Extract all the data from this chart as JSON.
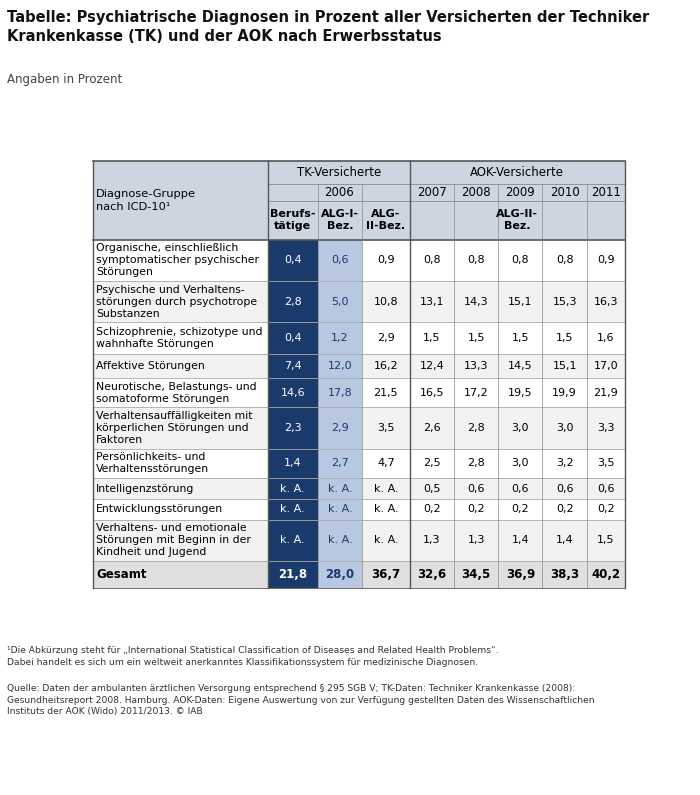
{
  "title": "Tabelle: Psychiatrische Diagnosen in Prozent aller Versicherten der Techniker\nKrankenkasse (TK) und der AOK nach Erwerbsstatus",
  "subtitle": "Angaben in Prozent",
  "footnote1": "¹Die Abkürzung steht für „International Statistical Classification of Diseases and Related Health Problems“.\nDabei handelt es sich um ein weltweit anerkanntes Klassifikationssystem für medizinische Diagnosen.",
  "footnote2": "Quelle: Daten der ambulanten ärztlichen Versorgung entsprechend § 295 SGB V; TK-Daten: Techniker Krankenkasse (2008):\nGesundheitsreport 2008. Hamburg. AOK-Daten: Eigene Auswertung von zur Verfügung gestellten Daten des Wissenschaftlichen\nInstituts der AOK (Wido) 2011/2013. © IAB",
  "rows": [
    {
      "label": "Organische, einschließlich\nsymptomatischer psychischer\nStörungen",
      "values": [
        "0,4",
        "0,6",
        "0,9",
        "0,8",
        "0,8",
        "0,8",
        "0,8",
        "0,9"
      ],
      "is_total": false
    },
    {
      "label": "Psychische und Verhaltens-\nstörungen durch psychotrope\nSubstanzen",
      "values": [
        "2,8",
        "5,0",
        "10,8",
        "13,1",
        "14,3",
        "15,1",
        "15,3",
        "16,3"
      ],
      "is_total": false
    },
    {
      "label": "Schizophrenie, schizotype und\nwahnhafte Störungen",
      "values": [
        "0,4",
        "1,2",
        "2,9",
        "1,5",
        "1,5",
        "1,5",
        "1,5",
        "1,6"
      ],
      "is_total": false
    },
    {
      "label": "Affektive Störungen",
      "values": [
        "7,4",
        "12,0",
        "16,2",
        "12,4",
        "13,3",
        "14,5",
        "15,1",
        "17,0"
      ],
      "is_total": false
    },
    {
      "label": "Neurotische, Belastungs- und\nsomatoforme Störungen",
      "values": [
        "14,6",
        "17,8",
        "21,5",
        "16,5",
        "17,2",
        "19,5",
        "19,9",
        "21,9"
      ],
      "is_total": false
    },
    {
      "label": "Verhaltensauffälligkeiten mit\nkörperlichen Störungen und\nFaktoren",
      "values": [
        "2,3",
        "2,9",
        "3,5",
        "2,6",
        "2,8",
        "3,0",
        "3,0",
        "3,3"
      ],
      "is_total": false
    },
    {
      "label": "Persönlichkeits- und\nVerhaltensstörungen",
      "values": [
        "1,4",
        "2,7",
        "4,7",
        "2,5",
        "2,8",
        "3,0",
        "3,2",
        "3,5"
      ],
      "is_total": false
    },
    {
      "label": "Intelligenzstörung",
      "values": [
        "k. A.",
        "k. A.",
        "k. A.",
        "0,5",
        "0,6",
        "0,6",
        "0,6",
        "0,6"
      ],
      "is_total": false
    },
    {
      "label": "Entwicklungsstörungen",
      "values": [
        "k. A.",
        "k. A.",
        "k. A.",
        "0,2",
        "0,2",
        "0,2",
        "0,2",
        "0,2"
      ],
      "is_total": false
    },
    {
      "label": "Verhaltens- und emotionale\nStörungen mit Beginn in der\nKindheit und Jugend",
      "values": [
        "k. A.",
        "k. A.",
        "k. A.",
        "1,3",
        "1,3",
        "1,4",
        "1,4",
        "1,5"
      ],
      "is_total": false
    },
    {
      "label": "Gesamt",
      "values": [
        "21,8",
        "28,0",
        "36,7",
        "32,6",
        "34,5",
        "36,9",
        "38,3",
        "40,2"
      ],
      "is_total": true
    }
  ],
  "color_dark_blue": "#1a3a6b",
  "color_light_blue": "#b8c8e0",
  "color_header_bg": "#cdd5e0",
  "color_white": "#ffffff",
  "color_light_gray": "#f2f2f2",
  "color_total_bg": "#e0e0e0"
}
